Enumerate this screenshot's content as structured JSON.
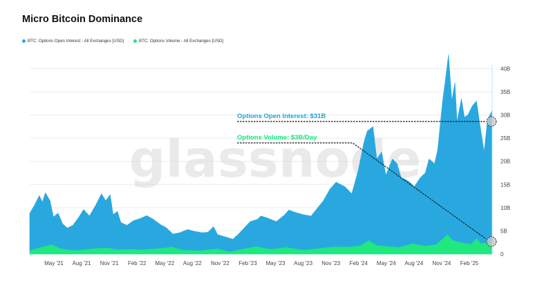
{
  "title": "Micro Bitcoin Dominance",
  "watermark": "glassnode",
  "colors": {
    "open_interest": "#29a8e0",
    "volume": "#1ee87e",
    "annotation_oi": "#21a3d9",
    "annotation_vol": "#14e57a"
  },
  "legend": [
    {
      "label": "BTC: Options Open Interest - All Exchanges [USD]",
      "color": "#29a8e0"
    },
    {
      "label": "BTC: Options Volume - All Exchanges [USD]",
      "color": "#1ee87e"
    }
  ],
  "annotations": {
    "open_interest": "Options Open Interest: $31B",
    "volume": "Options Volume: $3B/Day"
  },
  "chart_data": {
    "type": "area",
    "title": "Micro Bitcoin Dominance",
    "xlim": [
      "2021-03-10",
      "2025-04-20"
    ],
    "ylim": [
      0,
      42
    ],
    "y_unit": "B USD",
    "x_tick_labels": [
      "May '21",
      "Aug '21",
      "Nov '21",
      "Feb '22",
      "May '22",
      "Aug '22",
      "Nov '22",
      "Feb '23",
      "May '23",
      "Aug '23",
      "Nov '23",
      "Feb '24",
      "May '24",
      "Aug '24",
      "Nov '24",
      "Feb '25"
    ],
    "y_tick_labels": [
      "0",
      "5B",
      "10B",
      "15B",
      "20B",
      "25B",
      "30B",
      "35B",
      "40B"
    ],
    "y_tick_values": [
      0,
      5,
      10,
      15,
      20,
      25,
      30,
      35,
      40
    ],
    "y_axis_side": "right",
    "grid": true,
    "legend_position": "top-left",
    "series": [
      {
        "name": "BTC: Options Open Interest - All Exchanges [USD]",
        "points": [
          [
            "2021-03-10",
            8.8
          ],
          [
            "2021-03-25",
            10.5
          ],
          [
            "2021-04-10",
            12.6
          ],
          [
            "2021-04-20",
            11.2
          ],
          [
            "2021-04-30",
            13.2
          ],
          [
            "2021-05-15",
            11.5
          ],
          [
            "2021-05-26",
            8.0
          ],
          [
            "2021-06-10",
            8.8
          ],
          [
            "2021-06-25",
            6.5
          ],
          [
            "2021-07-10",
            5.6
          ],
          [
            "2021-07-28",
            6.2
          ],
          [
            "2021-08-15",
            7.8
          ],
          [
            "2021-09-01",
            9.6
          ],
          [
            "2021-09-20",
            8.2
          ],
          [
            "2021-10-10",
            10.5
          ],
          [
            "2021-10-29",
            13.0
          ],
          [
            "2021-11-12",
            11.5
          ],
          [
            "2021-11-26",
            12.8
          ],
          [
            "2021-12-06",
            8.5
          ],
          [
            "2021-12-20",
            9.2
          ],
          [
            "2021-12-31",
            6.8
          ],
          [
            "2022-01-20",
            6.2
          ],
          [
            "2022-02-10",
            7.2
          ],
          [
            "2022-03-01",
            7.6
          ],
          [
            "2022-03-25",
            8.3
          ],
          [
            "2022-04-15",
            7.5
          ],
          [
            "2022-05-10",
            6.3
          ],
          [
            "2022-05-27",
            5.7
          ],
          [
            "2022-06-18",
            4.3
          ],
          [
            "2022-07-10",
            4.6
          ],
          [
            "2022-08-05",
            5.3
          ],
          [
            "2022-08-26",
            4.9
          ],
          [
            "2022-09-20",
            4.6
          ],
          [
            "2022-10-10",
            4.7
          ],
          [
            "2022-10-28",
            5.9
          ],
          [
            "2022-11-10",
            4.2
          ],
          [
            "2022-11-25",
            3.9
          ],
          [
            "2022-12-30",
            3.2
          ],
          [
            "2023-01-20",
            4.5
          ],
          [
            "2023-02-24",
            7.0
          ],
          [
            "2023-03-20",
            7.5
          ],
          [
            "2023-03-31",
            8.2
          ],
          [
            "2023-04-20",
            7.8
          ],
          [
            "2023-05-20",
            7.0
          ],
          [
            "2023-06-15",
            8.4
          ],
          [
            "2023-06-30",
            9.5
          ],
          [
            "2023-07-20",
            9.0
          ],
          [
            "2023-08-15",
            8.5
          ],
          [
            "2023-09-10",
            8.2
          ],
          [
            "2023-09-29",
            9.8
          ],
          [
            "2023-10-20",
            11.5
          ],
          [
            "2023-11-10",
            14.0
          ],
          [
            "2023-11-30",
            15.5
          ],
          [
            "2023-12-29",
            14.5
          ],
          [
            "2024-01-20",
            13.0
          ],
          [
            "2024-02-10",
            18.0
          ],
          [
            "2024-02-28",
            24.0
          ],
          [
            "2024-03-10",
            26.5
          ],
          [
            "2024-03-29",
            27.5
          ],
          [
            "2024-04-10",
            20.5
          ],
          [
            "2024-04-26",
            22.0
          ],
          [
            "2024-05-10",
            17.0
          ],
          [
            "2024-05-31",
            20.5
          ],
          [
            "2024-06-15",
            19.5
          ],
          [
            "2024-06-28",
            16.5
          ],
          [
            "2024-07-15",
            16.0
          ],
          [
            "2024-07-26",
            15.5
          ],
          [
            "2024-08-10",
            14.5
          ],
          [
            "2024-08-30",
            16.5
          ],
          [
            "2024-09-15",
            17.5
          ],
          [
            "2024-09-27",
            20.5
          ],
          [
            "2024-10-15",
            19.5
          ],
          [
            "2024-10-25",
            22.5
          ],
          [
            "2024-11-10",
            33.0
          ],
          [
            "2024-11-20",
            38.0
          ],
          [
            "2024-11-29",
            43.0
          ],
          [
            "2024-12-10",
            33.0
          ],
          [
            "2024-12-20",
            37.0
          ],
          [
            "2024-12-27",
            28.5
          ],
          [
            "2025-01-10",
            33.5
          ],
          [
            "2025-01-20",
            29.5
          ],
          [
            "2025-01-31",
            30.0
          ],
          [
            "2025-02-15",
            32.0
          ],
          [
            "2025-02-28",
            33.0
          ],
          [
            "2025-03-10",
            28.5
          ],
          [
            "2025-03-25",
            22.0
          ],
          [
            "2025-04-05",
            29.0
          ],
          [
            "2025-04-20",
            31.0
          ]
        ]
      },
      {
        "name": "BTC: Options Volume - All Exchanges [USD]",
        "points": [
          [
            "2021-03-10",
            0.7
          ],
          [
            "2021-04-15",
            1.4
          ],
          [
            "2021-05-20",
            2.0
          ],
          [
            "2021-06-20",
            1.1
          ],
          [
            "2021-08-01",
            0.7
          ],
          [
            "2021-09-10",
            1.0
          ],
          [
            "2021-10-20",
            1.2
          ],
          [
            "2021-11-20",
            1.3
          ],
          [
            "2021-12-20",
            0.9
          ],
          [
            "2022-01-25",
            1.0
          ],
          [
            "2022-03-10",
            0.9
          ],
          [
            "2022-05-12",
            1.2
          ],
          [
            "2022-06-15",
            1.5
          ],
          [
            "2022-07-20",
            0.8
          ],
          [
            "2022-09-15",
            0.7
          ],
          [
            "2022-11-10",
            1.1
          ],
          [
            "2022-12-20",
            0.4
          ],
          [
            "2023-01-20",
            0.9
          ],
          [
            "2023-03-15",
            1.6
          ],
          [
            "2023-05-01",
            1.0
          ],
          [
            "2023-06-20",
            1.4
          ],
          [
            "2023-08-20",
            0.8
          ],
          [
            "2023-10-10",
            1.2
          ],
          [
            "2023-11-20",
            1.5
          ],
          [
            "2024-01-10",
            1.5
          ],
          [
            "2024-02-20",
            1.8
          ],
          [
            "2024-03-15",
            2.9
          ],
          [
            "2024-04-10",
            1.8
          ],
          [
            "2024-05-20",
            1.6
          ],
          [
            "2024-06-20",
            1.4
          ],
          [
            "2024-08-05",
            2.2
          ],
          [
            "2024-09-15",
            1.7
          ],
          [
            "2024-10-20",
            2.0
          ],
          [
            "2024-11-15",
            3.5
          ],
          [
            "2024-11-26",
            4.2
          ],
          [
            "2024-12-10",
            3.0
          ],
          [
            "2024-12-25",
            2.7
          ],
          [
            "2025-01-20",
            2.3
          ],
          [
            "2025-02-10",
            2.1
          ],
          [
            "2025-02-28",
            3.3
          ],
          [
            "2025-03-15",
            2.2
          ],
          [
            "2025-04-20",
            2.6
          ]
        ]
      }
    ]
  }
}
